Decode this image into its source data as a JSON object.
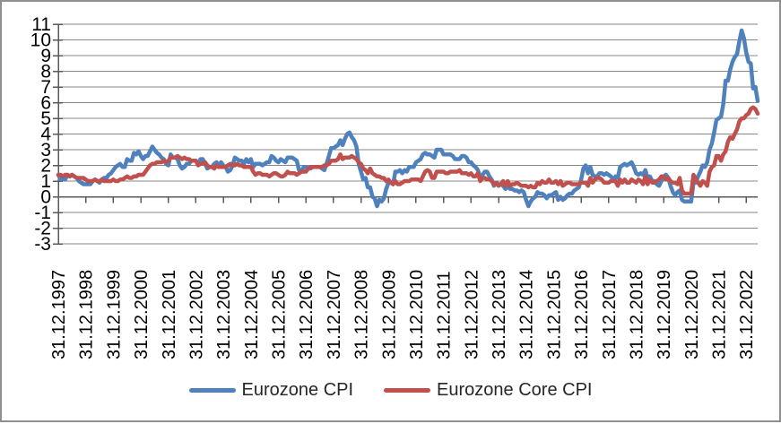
{
  "chart_data": {
    "type": "line",
    "title": "",
    "grid": true,
    "grid_color": "#878787",
    "axis_color": "#595959",
    "legend_position": "bottom",
    "y_axis": {
      "min": -3,
      "max": 11,
      "step": 1,
      "tick_labels": [
        "11",
        "10",
        "9",
        "8",
        "7",
        "6",
        "5",
        "4",
        "3",
        "2",
        "1",
        "0",
        "-1",
        "-2",
        "-3"
      ]
    },
    "x_axis": {
      "frequency": "monthly",
      "points_per_label": 12,
      "tick_labels": [
        "31.12.1997",
        "31.12.1998",
        "31.12.1999",
        "31.12.2000",
        "31.12.2001",
        "31.12.2002",
        "31.12.2003",
        "31.12.2004",
        "31.12.2005",
        "31.12.2006",
        "31.12.2007",
        "31.12.2008",
        "31.12.2009",
        "31.12.2010",
        "31.12.2011",
        "31.12.2012",
        "31.12.2013",
        "31.12.2014",
        "31.12.2015",
        "31.12.2016",
        "31.12.2017",
        "31.12.2018",
        "31.12.2019",
        "31.12.2020",
        "31.12.2021",
        "31.12.2022"
      ]
    },
    "series": [
      {
        "name": "Eurozone CPI",
        "color": "#4F81BD",
        "values": [
          1.4,
          1.1,
          1.1,
          1.1,
          1.4,
          1.3,
          1.4,
          1.3,
          1.2,
          1.0,
          0.9,
          0.8,
          0.8,
          0.8,
          0.8,
          1.0,
          1.1,
          1.0,
          0.9,
          1.1,
          1.2,
          1.2,
          1.4,
          1.5,
          1.7,
          1.9,
          2.0,
          2.1,
          1.9,
          1.9,
          2.4,
          2.3,
          2.3,
          2.8,
          2.7,
          2.9,
          2.6,
          2.4,
          2.6,
          2.6,
          2.9,
          3.2,
          3.0,
          2.8,
          2.7,
          2.5,
          2.4,
          2.1,
          2.0,
          2.7,
          2.5,
          2.5,
          2.4,
          2.0,
          1.8,
          1.9,
          2.1,
          2.1,
          2.3,
          2.3,
          2.3,
          2.1,
          2.4,
          2.4,
          2.1,
          1.8,
          1.9,
          1.9,
          2.1,
          2.2,
          2.0,
          2.2,
          2.0,
          1.9,
          1.6,
          1.7,
          2.0,
          2.5,
          2.4,
          2.3,
          2.3,
          2.1,
          2.4,
          2.2,
          2.4,
          1.9,
          2.1,
          2.1,
          2.1,
          2.0,
          2.1,
          2.2,
          2.2,
          2.6,
          2.5,
          2.3,
          2.2,
          2.4,
          2.3,
          2.2,
          2.5,
          2.5,
          2.5,
          2.4,
          2.3,
          1.7,
          1.6,
          1.9,
          1.9,
          1.8,
          1.8,
          1.9,
          1.9,
          1.9,
          1.9,
          1.8,
          1.7,
          2.1,
          2.6,
          3.1,
          3.1,
          3.2,
          3.3,
          3.6,
          3.3,
          3.7,
          4.0,
          4.1,
          3.8,
          3.6,
          3.2,
          2.1,
          1.6,
          1.1,
          1.2,
          0.6,
          0.6,
          0.0,
          -0.1,
          -0.6,
          -0.2,
          -0.3,
          -0.1,
          0.5,
          0.9,
          0.9,
          0.8,
          1.6,
          1.6,
          1.7,
          1.5,
          1.7,
          1.6,
          1.9,
          1.9,
          1.9,
          2.2,
          2.3,
          2.4,
          2.7,
          2.8,
          2.7,
          2.7,
          2.6,
          2.5,
          3.0,
          3.0,
          3.0,
          2.7,
          2.7,
          2.7,
          2.7,
          2.6,
          2.4,
          2.4,
          2.4,
          2.6,
          2.6,
          2.5,
          2.2,
          2.2,
          2.0,
          1.9,
          1.7,
          1.2,
          1.4,
          1.6,
          1.6,
          1.3,
          1.1,
          0.7,
          0.9,
          0.8,
          0.8,
          0.7,
          0.5,
          0.7,
          0.5,
          0.5,
          0.4,
          0.4,
          0.3,
          0.4,
          0.3,
          -0.2,
          -0.6,
          -0.3,
          -0.1,
          0.0,
          0.3,
          0.2,
          0.2,
          0.1,
          -0.1,
          0.1,
          0.1,
          0.2,
          0.3,
          -0.2,
          0.0,
          -0.2,
          -0.1,
          0.1,
          0.2,
          0.2,
          0.4,
          0.5,
          0.6,
          1.1,
          1.8,
          2.0,
          1.5,
          1.9,
          1.4,
          1.3,
          1.3,
          1.5,
          1.5,
          1.4,
          1.5,
          1.4,
          1.3,
          1.1,
          1.3,
          1.2,
          1.9,
          2.0,
          2.1,
          2.0,
          2.1,
          2.2,
          1.9,
          1.5,
          1.4,
          1.5,
          1.4,
          1.7,
          1.2,
          1.3,
          1.0,
          1.0,
          0.8,
          0.7,
          1.0,
          1.3,
          1.4,
          1.2,
          0.7,
          0.3,
          0.1,
          0.3,
          0.4,
          -0.2,
          -0.3,
          -0.3,
          -0.3,
          -0.3,
          0.9,
          0.9,
          1.3,
          1.6,
          2.0,
          1.9,
          2.2,
          3.0,
          3.4,
          4.1,
          4.9,
          5.0,
          5.1,
          5.9,
          7.4,
          7.4,
          8.1,
          8.6,
          8.9,
          9.1,
          9.9,
          10.6,
          10.1,
          9.2,
          8.6,
          8.5,
          6.9,
          7.0,
          6.1
        ]
      },
      {
        "name": "Eurozone Core CPI",
        "color": "#C0504D",
        "values": [
          1.4,
          1.4,
          1.3,
          1.4,
          1.4,
          1.3,
          1.4,
          1.3,
          1.2,
          1.2,
          1.2,
          1.2,
          1.1,
          1.0,
          1.0,
          1.0,
          1.1,
          1.0,
          1.0,
          1.1,
          1.0,
          1.0,
          1.0,
          1.0,
          1.1,
          1.0,
          1.0,
          1.1,
          1.1,
          1.2,
          1.3,
          1.2,
          1.2,
          1.3,
          1.3,
          1.4,
          1.4,
          1.4,
          1.6,
          1.8,
          2.0,
          2.1,
          2.1,
          2.2,
          2.2,
          2.2,
          2.3,
          2.2,
          2.3,
          2.5,
          2.5,
          2.5,
          2.6,
          2.5,
          2.4,
          2.5,
          2.4,
          2.4,
          2.3,
          2.3,
          2.3,
          2.0,
          2.1,
          2.1,
          2.2,
          2.0,
          1.9,
          1.9,
          1.8,
          2.0,
          1.9,
          1.9,
          1.9,
          1.9,
          2.0,
          2.1,
          2.0,
          2.0,
          2.1,
          2.0,
          2.0,
          1.9,
          1.9,
          1.9,
          1.9,
          1.6,
          1.4,
          1.5,
          1.5,
          1.4,
          1.4,
          1.4,
          1.3,
          1.4,
          1.5,
          1.5,
          1.4,
          1.3,
          1.3,
          1.4,
          1.6,
          1.5,
          1.5,
          1.5,
          1.4,
          1.5,
          1.6,
          1.6,
          1.6,
          1.8,
          1.9,
          1.9,
          1.9,
          1.9,
          1.9,
          1.9,
          2.0,
          2.0,
          2.1,
          2.3,
          2.3,
          2.3,
          2.4,
          2.7,
          2.4,
          2.5,
          2.5,
          2.5,
          2.6,
          2.5,
          2.4,
          2.2,
          2.1,
          1.8,
          1.7,
          1.5,
          1.8,
          1.5,
          1.4,
          1.3,
          1.3,
          1.2,
          1.2,
          1.0,
          1.1,
          0.9,
          0.8,
          1.0,
          0.8,
          0.8,
          0.9,
          1.0,
          1.0,
          1.0,
          1.1,
          1.1,
          1.1,
          1.1,
          1.0,
          1.3,
          1.6,
          1.7,
          1.6,
          1.2,
          1.2,
          1.6,
          1.6,
          1.6,
          1.6,
          1.5,
          1.5,
          1.6,
          1.6,
          1.6,
          1.6,
          1.7,
          1.5,
          1.5,
          1.5,
          1.4,
          1.5,
          1.3,
          1.3,
          1.5,
          1.0,
          1.2,
          1.2,
          1.1,
          1.1,
          1.0,
          0.8,
          0.9,
          0.7,
          0.8,
          1.0,
          0.7,
          1.0,
          0.7,
          0.8,
          0.8,
          0.9,
          0.8,
          0.7,
          0.7,
          0.7,
          0.6,
          0.7,
          0.6,
          0.6,
          0.9,
          0.8,
          1.0,
          0.9,
          0.9,
          1.1,
          0.9,
          0.9,
          1.0,
          0.8,
          1.0,
          0.7,
          0.8,
          0.9,
          0.9,
          0.8,
          0.8,
          0.8,
          0.8,
          0.9,
          0.9,
          0.9,
          0.7,
          1.2,
          0.9,
          1.1,
          1.2,
          1.2,
          1.1,
          0.9,
          0.9,
          0.9,
          1.0,
          1.0,
          1.0,
          0.7,
          1.1,
          0.9,
          1.1,
          0.9,
          0.9,
          1.1,
          1.0,
          0.9,
          1.1,
          1.0,
          0.8,
          1.3,
          0.8,
          1.1,
          0.9,
          0.9,
          1.0,
          1.1,
          1.3,
          1.3,
          1.1,
          1.2,
          1.0,
          0.9,
          0.9,
          0.8,
          1.2,
          0.4,
          0.2,
          0.2,
          0.2,
          0.2,
          1.4,
          1.1,
          0.9,
          0.7,
          1.0,
          0.9,
          0.7,
          1.6,
          1.9,
          2.0,
          2.6,
          2.6,
          2.3,
          2.7,
          2.9,
          3.5,
          3.8,
          3.7,
          4.0,
          4.3,
          4.8,
          5.0,
          5.0,
          5.2,
          5.3,
          5.6,
          5.7,
          5.6,
          5.3
        ]
      }
    ]
  }
}
